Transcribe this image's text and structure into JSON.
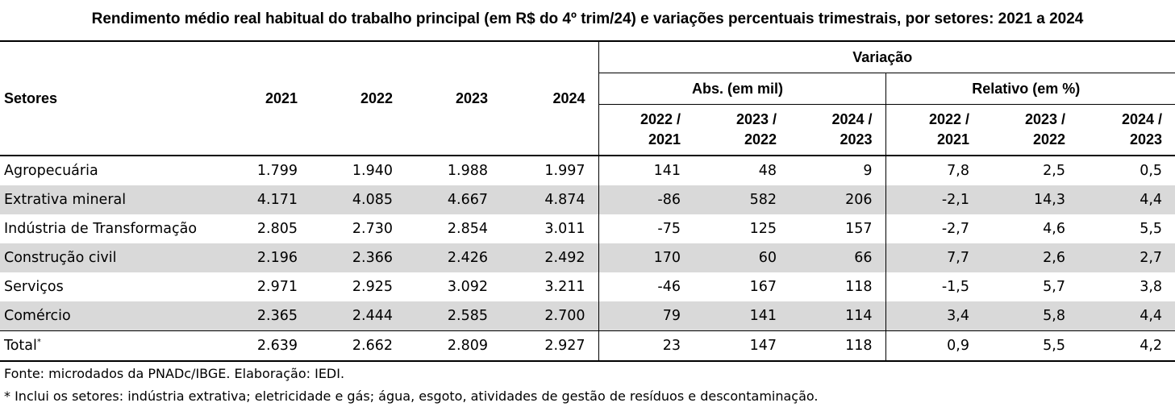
{
  "title": "Rendimento médio real habitual do trabalho principal (em R$ do 4º trim/24) e variações percentuais trimestrais, por setores:  2021 a 2024",
  "headers": {
    "setores": "Setores",
    "years": [
      "2021",
      "2022",
      "2023",
      "2024"
    ],
    "variacao": "Variação",
    "abs": "Abs. (em mil)",
    "relativo": "Relativo (em %)",
    "periods": [
      [
        "2022 /",
        "2021"
      ],
      [
        "2023 /",
        "2022"
      ],
      [
        "2024 /",
        "2023"
      ],
      [
        "2022 /",
        "2021"
      ],
      [
        "2023 /",
        "2022"
      ],
      [
        "2024 /",
        "2023"
      ]
    ]
  },
  "rows": [
    {
      "label": "Agropecuária",
      "values": [
        "1.799",
        "1.940",
        "1.988",
        "1.997",
        "141",
        "48",
        "9",
        "7,8",
        "2,5",
        "0,5"
      ]
    },
    {
      "label": "Extrativa mineral",
      "values": [
        "4.171",
        "4.085",
        "4.667",
        "4.874",
        "-86",
        "582",
        "206",
        "-2,1",
        "14,3",
        "4,4"
      ]
    },
    {
      "label": "Indústria de Transformação",
      "values": [
        "2.805",
        "2.730",
        "2.854",
        "3.011",
        "-75",
        "125",
        "157",
        "-2,7",
        "4,6",
        "5,5"
      ]
    },
    {
      "label": "Construção civil",
      "values": [
        "2.196",
        "2.366",
        "2.426",
        "2.492",
        "170",
        "60",
        "66",
        "7,7",
        "2,6",
        "2,7"
      ]
    },
    {
      "label": "Serviços",
      "values": [
        "2.971",
        "2.925",
        "3.092",
        "3.211",
        "-46",
        "167",
        "118",
        "-1,5",
        "5,7",
        "3,8"
      ]
    },
    {
      "label": "Comércio",
      "values": [
        "2.365",
        "2.444",
        "2.585",
        "2.700",
        "79",
        "141",
        "114",
        "3,4",
        "5,8",
        "4,4"
      ]
    }
  ],
  "total": {
    "label": "Total",
    "sup": "*",
    "values": [
      "2.639",
      "2.662",
      "2.809",
      "2.927",
      "23",
      "147",
      "118",
      "0,9",
      "5,5",
      "4,2"
    ]
  },
  "notes": {
    "fonte": "Fonte: microdados da PNADc/IBGE. Elaboração: IEDI.",
    "footnote": "* Inclui os setores: indústria extrativa; eletricidade e gás; água, esgoto, atividades de gestão de resíduos e descontaminação."
  }
}
